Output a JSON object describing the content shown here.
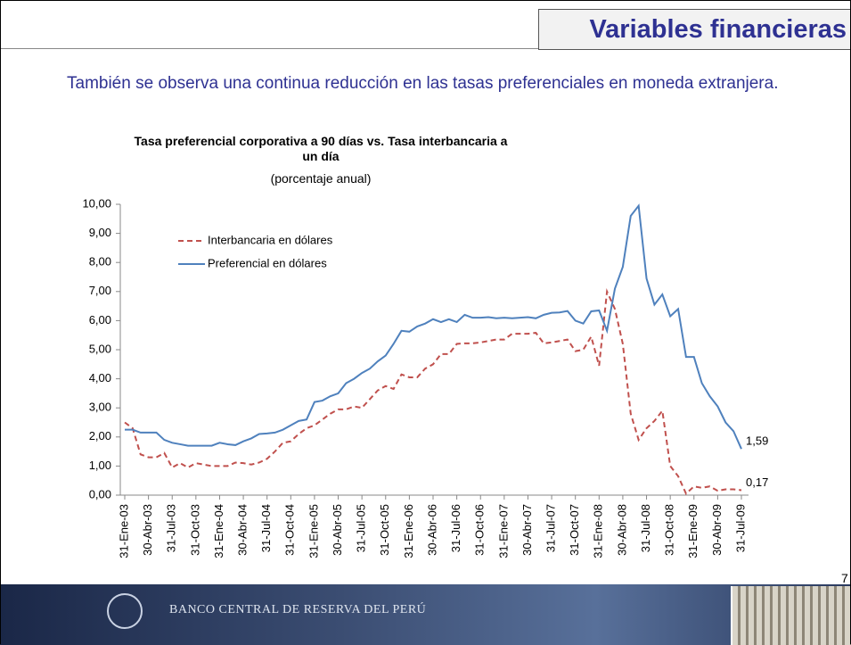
{
  "header": {
    "title": "Variables financieras"
  },
  "body": {
    "text": "También se observa una continua reducción en las tasas preferenciales en moneda extranjera."
  },
  "page_number": "7",
  "footer": {
    "institution": "BANCO CENTRAL DE RESERVA DEL PERÚ"
  },
  "chart_data": {
    "type": "line",
    "title": "Tasa preferencial corporativa a 90 días vs. Tasa interbancaria a un día",
    "subtitle": "(porcentaje anual)",
    "categories": [
      "31-Ene-03",
      null,
      null,
      "30-Abr-03",
      null,
      null,
      "31-Jul-03",
      null,
      null,
      "31-Oct-03",
      null,
      null,
      "31-Ene-04",
      null,
      null,
      "30-Abr-04",
      null,
      null,
      "31-Jul-04",
      null,
      null,
      "31-Oct-04",
      null,
      null,
      "31-Ene-05",
      null,
      null,
      "30-Abr-05",
      null,
      null,
      "31-Jul-05",
      null,
      null,
      "31-Oct-05",
      null,
      null,
      "31-Ene-06",
      null,
      null,
      "30-Abr-06",
      null,
      null,
      "31-Jul-06",
      null,
      null,
      "31-Oct-06",
      null,
      null,
      "31-Ene-07",
      null,
      null,
      "30-Abr-07",
      null,
      null,
      "31-Jul-07",
      null,
      null,
      "31-Oct-07",
      null,
      null,
      "31-Ene-08",
      null,
      null,
      "30-Abr-08",
      null,
      null,
      "31-Jul-08",
      null,
      null,
      "31-Oct-08",
      null,
      null,
      "31-Ene-09",
      null,
      null,
      "30-Abr-09",
      null,
      null,
      "31-Jul-09"
    ],
    "series": [
      {
        "name": "Interbancaria en dólares",
        "color": "#c0504d",
        "dashed": true,
        "values": [
          2.5,
          2.3,
          1.4,
          1.3,
          1.3,
          1.45,
          0.95,
          1.1,
          0.95,
          1.1,
          1.05,
          1.0,
          1.0,
          1.0,
          1.12,
          1.1,
          1.05,
          1.12,
          1.25,
          1.5,
          1.8,
          1.85,
          2.1,
          2.3,
          2.4,
          2.6,
          2.8,
          2.95,
          2.95,
          3.05,
          3.0,
          3.3,
          3.6,
          3.75,
          3.65,
          4.15,
          4.05,
          4.05,
          4.35,
          4.5,
          4.85,
          4.85,
          5.2,
          5.22,
          5.22,
          5.25,
          5.3,
          5.35,
          5.35,
          5.55,
          5.55,
          5.55,
          5.58,
          5.22,
          5.25,
          5.3,
          5.35,
          4.95,
          5.0,
          5.45,
          4.45,
          7.0,
          6.4,
          5.2,
          2.8,
          1.9,
          2.3,
          2.55,
          2.9,
          1.0,
          0.65,
          0.05,
          0.3,
          0.25,
          0.3,
          0.15,
          0.2,
          0.2,
          0.17
        ],
        "value_labels": [
          null,
          null,
          null,
          null,
          null,
          null,
          null,
          null,
          null,
          null,
          null,
          null,
          null,
          null,
          null,
          null,
          null,
          null,
          null,
          null,
          null,
          null,
          null,
          null,
          null,
          null,
          null,
          null,
          null,
          null,
          null,
          null,
          null,
          null,
          null,
          null,
          null,
          null,
          null,
          null,
          null,
          null,
          null,
          null,
          null,
          null,
          null,
          null,
          null,
          null,
          null,
          null,
          null,
          null,
          null,
          null,
          null,
          null,
          null,
          null,
          null,
          null,
          null,
          null,
          null,
          null,
          null,
          null,
          null,
          null,
          null,
          null,
          null,
          null,
          null,
          null,
          null,
          null,
          "0,17"
        ]
      },
      {
        "name": "Preferencial en dólares",
        "color": "#4f81bd",
        "dashed": false,
        "values": [
          2.25,
          2.25,
          2.15,
          2.15,
          2.15,
          1.9,
          1.8,
          1.75,
          1.7,
          1.7,
          1.7,
          1.7,
          1.8,
          1.75,
          1.72,
          1.85,
          1.95,
          2.1,
          2.12,
          2.15,
          2.25,
          2.4,
          2.55,
          2.6,
          3.2,
          3.25,
          3.4,
          3.5,
          3.85,
          4.0,
          4.2,
          4.35,
          4.6,
          4.8,
          5.2,
          5.65,
          5.62,
          5.8,
          5.9,
          6.05,
          5.95,
          6.05,
          5.95,
          6.2,
          6.1,
          6.1,
          6.12,
          6.08,
          6.1,
          6.08,
          6.1,
          6.12,
          6.08,
          6.2,
          6.27,
          6.28,
          6.33,
          6.0,
          5.9,
          6.32,
          6.35,
          5.65,
          7.1,
          7.85,
          9.6,
          9.95,
          7.45,
          6.55,
          6.9,
          6.15,
          6.4,
          4.75,
          4.75,
          3.85,
          3.4,
          3.05,
          2.5,
          2.2,
          1.59
        ],
        "value_labels": [
          null,
          null,
          null,
          null,
          null,
          null,
          null,
          null,
          null,
          null,
          null,
          null,
          null,
          null,
          null,
          null,
          null,
          null,
          null,
          null,
          null,
          null,
          null,
          null,
          null,
          null,
          null,
          null,
          null,
          null,
          null,
          null,
          null,
          null,
          null,
          null,
          null,
          null,
          null,
          null,
          null,
          null,
          null,
          null,
          null,
          null,
          null,
          null,
          null,
          null,
          null,
          null,
          null,
          null,
          null,
          null,
          null,
          null,
          null,
          null,
          null,
          null,
          null,
          null,
          null,
          null,
          null,
          null,
          null,
          null,
          null,
          null,
          null,
          null,
          null,
          null,
          null,
          null,
          "1,59"
        ]
      }
    ],
    "ylim": [
      0,
      10
    ],
    "yticks": [
      {
        "value": 0,
        "label": "0,00"
      },
      {
        "value": 1,
        "label": "1,00"
      },
      {
        "value": 2,
        "label": "2,00"
      },
      {
        "value": 3,
        "label": "3,00"
      },
      {
        "value": 4,
        "label": "4,00"
      },
      {
        "value": 5,
        "label": "5,00"
      },
      {
        "value": 6,
        "label": "6,00"
      },
      {
        "value": 7,
        "label": "7,00"
      },
      {
        "value": 8,
        "label": "8,00"
      },
      {
        "value": 9,
        "label": "9,00"
      },
      {
        "value": 10,
        "label": "10,00"
      }
    ],
    "grid": false,
    "legend": "top-left"
  }
}
